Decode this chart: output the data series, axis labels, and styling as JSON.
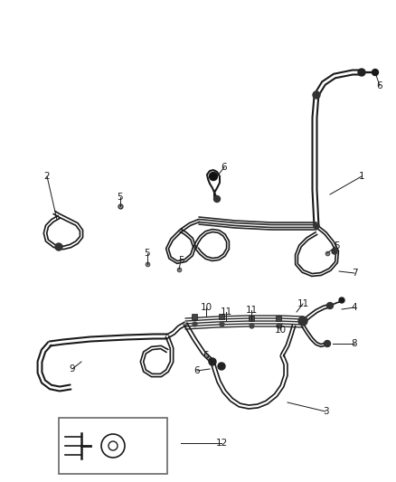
{
  "background_color": "#ffffff",
  "line_color": "#1a1a1a",
  "label_color": "#1a1a1a",
  "figsize": [
    4.38,
    5.33
  ],
  "dpi": 100,
  "lw_hose": 1.8,
  "lw_thin": 1.2,
  "label_fs": 7.5
}
